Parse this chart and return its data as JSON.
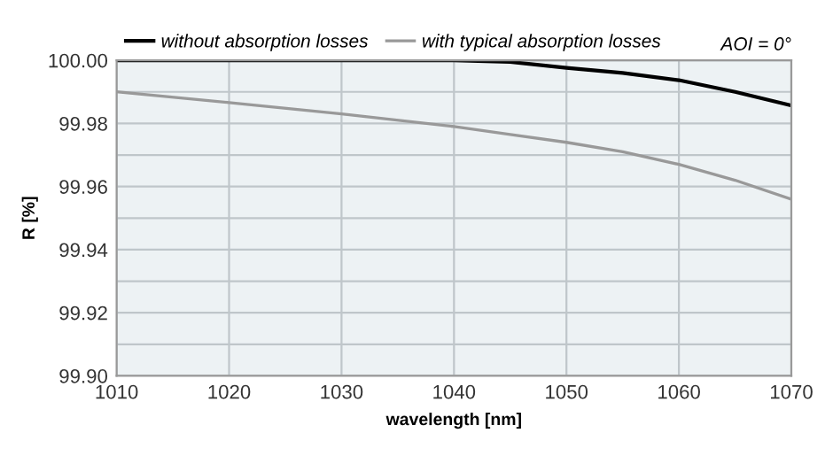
{
  "chart_data": {
    "type": "line",
    "xlabel": "wavelength [nm]",
    "ylabel": "R [%]",
    "x": [
      1010,
      1020,
      1030,
      1040,
      1045,
      1050,
      1055,
      1060,
      1065,
      1070
    ],
    "series": [
      {
        "name": "without absorption losses",
        "color": "#000000",
        "values": [
          100.0,
          100.0,
          100.0,
          100.0,
          99.9995,
          99.9976,
          99.996,
          99.9937,
          99.99,
          99.9857
        ]
      },
      {
        "name": "with typical absorption losses",
        "color": "#999999",
        "values": [
          99.99,
          99.9866,
          99.983,
          99.979,
          99.9765,
          99.974,
          99.971,
          99.967,
          99.962,
          99.956
        ]
      }
    ],
    "annotations": [
      "AOI = 0°"
    ],
    "xlim": [
      1010,
      1070
    ],
    "xticks": [
      1010,
      1020,
      1030,
      1040,
      1050,
      1060,
      1070
    ],
    "ylim": [
      99.9,
      100.0
    ],
    "yticks": [
      {
        "value": 99.9,
        "label": "99.90"
      },
      {
        "value": 99.91,
        "label": null
      },
      {
        "value": 99.92,
        "label": "99.92"
      },
      {
        "value": 99.93,
        "label": null
      },
      {
        "value": 99.94,
        "label": "99.94"
      },
      {
        "value": 99.95,
        "label": null
      },
      {
        "value": 99.96,
        "label": "99.96"
      },
      {
        "value": 99.97,
        "label": null
      },
      {
        "value": 99.98,
        "label": "99.98"
      },
      {
        "value": 99.99,
        "label": null
      },
      {
        "value": 100.0,
        "label": "100.00"
      }
    ],
    "grid": true,
    "legend": "top",
    "marker": "none",
    "line_style": "solid"
  }
}
